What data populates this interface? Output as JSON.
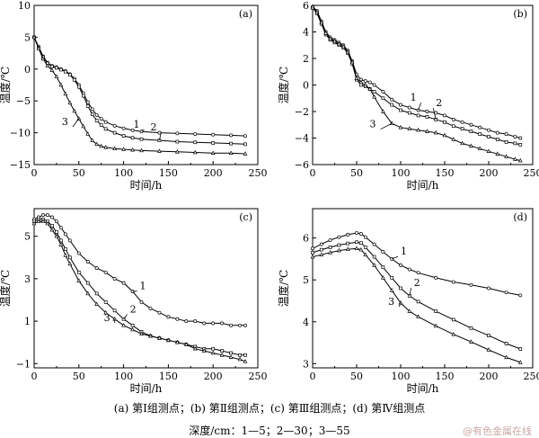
{
  "caption_panels": "(a) 第Ⅰ组测点；(b) 第Ⅱ组测点；(c) 第Ⅲ组测点；(d) 第Ⅳ组测点",
  "caption_depth": "深度/cm：1—5；2—30；3—55",
  "watermark": "@有色金属在线",
  "chart_data": [
    {
      "type": "line",
      "panel_label": "(a)",
      "xlabel": "时间/h",
      "ylabel": "温度/℃",
      "xlim": [
        0,
        250
      ],
      "ylim": [
        -15,
        10
      ],
      "xticks": [
        0,
        50,
        100,
        150,
        200,
        250
      ],
      "yticks": [
        10,
        5,
        0,
        -5,
        -10,
        -15
      ],
      "grid": false,
      "series": [
        {
          "name": "1",
          "x": [
            0,
            5,
            10,
            15,
            20,
            25,
            30,
            35,
            40,
            45,
            50,
            55,
            60,
            65,
            70,
            75,
            80,
            90,
            100,
            110,
            120,
            140,
            160,
            180,
            200,
            220,
            236
          ],
          "y": [
            5.0,
            3.5,
            2.0,
            1.0,
            0.5,
            0.3,
            0.0,
            -0.3,
            -0.8,
            -1.5,
            -2.5,
            -3.8,
            -5.2,
            -6.3,
            -7.2,
            -7.8,
            -8.3,
            -8.9,
            -9.3,
            -9.6,
            -9.8,
            -10.0,
            -10.1,
            -10.2,
            -10.3,
            -10.4,
            -10.5
          ],
          "label_at": [
            118,
            -9.2
          ]
        },
        {
          "name": "2",
          "x": [
            0,
            5,
            10,
            15,
            20,
            25,
            30,
            35,
            40,
            45,
            50,
            55,
            60,
            65,
            70,
            75,
            80,
            90,
            100,
            110,
            120,
            140,
            160,
            180,
            200,
            220,
            236
          ],
          "y": [
            5.0,
            3.4,
            1.9,
            0.9,
            0.4,
            0.2,
            -0.1,
            -0.4,
            -0.9,
            -1.7,
            -2.8,
            -4.2,
            -5.8,
            -7.1,
            -8.1,
            -8.8,
            -9.4,
            -10.0,
            -10.5,
            -10.8,
            -11.0,
            -11.2,
            -11.4,
            -11.5,
            -11.6,
            -11.7,
            -11.8
          ],
          "label_at": [
            137,
            -9.6
          ]
        },
        {
          "name": "3",
          "x": [
            0,
            5,
            10,
            15,
            20,
            25,
            30,
            35,
            40,
            45,
            50,
            55,
            60,
            65,
            70,
            75,
            80,
            90,
            100,
            110,
            120,
            140,
            160,
            180,
            200,
            220,
            236
          ],
          "y": [
            5.0,
            3.2,
            1.6,
            0.5,
            -0.2,
            -1.2,
            -2.5,
            -3.9,
            -5.3,
            -6.6,
            -7.8,
            -9.0,
            -10.2,
            -11.2,
            -11.8,
            -12.1,
            -12.3,
            -12.5,
            -12.6,
            -12.7,
            -12.8,
            -12.9,
            -13.0,
            -13.1,
            -13.2,
            -13.2,
            -13.3
          ],
          "label_at": [
            38,
            -8.8
          ]
        }
      ]
    },
    {
      "type": "line",
      "panel_label": "(b)",
      "xlabel": "时间/h",
      "ylabel": "温度/℃",
      "xlim": [
        0,
        250
      ],
      "ylim": [
        -6,
        6
      ],
      "xticks": [
        0,
        50,
        100,
        150,
        200,
        250
      ],
      "yticks": [
        6,
        4,
        2,
        0,
        -2,
        -4,
        -6
      ],
      "grid": false,
      "series": [
        {
          "name": "1",
          "x": [
            0,
            5,
            10,
            15,
            20,
            25,
            30,
            35,
            40,
            45,
            50,
            55,
            60,
            65,
            70,
            80,
            90,
            100,
            110,
            120,
            130,
            140,
            150,
            160,
            170,
            180,
            190,
            200,
            210,
            220,
            230,
            236
          ],
          "y": [
            5.9,
            5.6,
            4.8,
            4.0,
            3.6,
            3.4,
            3.2,
            3.0,
            2.6,
            1.8,
            0.8,
            0.4,
            0.3,
            0.2,
            0.0,
            -0.5,
            -1.1,
            -1.5,
            -1.7,
            -1.9,
            -2.0,
            -2.1,
            -2.3,
            -2.6,
            -2.8,
            -3.0,
            -3.2,
            -3.4,
            -3.6,
            -3.7,
            -3.9,
            -4.0
          ],
          "label_at": [
            118,
            -1.2
          ]
        },
        {
          "name": "2",
          "x": [
            0,
            5,
            10,
            15,
            20,
            25,
            30,
            35,
            40,
            45,
            50,
            55,
            60,
            65,
            70,
            80,
            90,
            100,
            110,
            120,
            130,
            140,
            150,
            160,
            170,
            180,
            190,
            200,
            210,
            220,
            230,
            236
          ],
          "y": [
            5.8,
            5.4,
            4.6,
            3.8,
            3.4,
            3.2,
            3.0,
            2.8,
            2.4,
            1.6,
            0.4,
            0.0,
            -0.1,
            -0.3,
            -0.5,
            -1.0,
            -1.5,
            -1.9,
            -2.1,
            -2.3,
            -2.4,
            -2.6,
            -2.8,
            -3.1,
            -3.3,
            -3.5,
            -3.7,
            -3.9,
            -4.1,
            -4.3,
            -4.4,
            -4.5
          ],
          "label_at": [
            140,
            -1.6
          ]
        },
        {
          "name": "3",
          "x": [
            0,
            5,
            10,
            15,
            20,
            25,
            30,
            35,
            40,
            45,
            50,
            55,
            60,
            65,
            70,
            80,
            90,
            100,
            110,
            120,
            130,
            140,
            150,
            160,
            170,
            180,
            190,
            200,
            210,
            220,
            230,
            236
          ],
          "y": [
            5.9,
            5.5,
            4.7,
            3.9,
            3.5,
            3.3,
            3.1,
            2.9,
            2.5,
            1.7,
            0.5,
            0.2,
            0.0,
            -0.3,
            -0.9,
            -2.0,
            -2.9,
            -3.2,
            -3.3,
            -3.4,
            -3.5,
            -3.6,
            -3.8,
            -4.1,
            -4.4,
            -4.6,
            -4.8,
            -5.0,
            -5.2,
            -5.4,
            -5.6,
            -5.7
          ],
          "label_at": [
            72,
            -3.2
          ]
        }
      ]
    },
    {
      "type": "line",
      "panel_label": "(c)",
      "xlabel": "时间/h",
      "ylabel": "温度/℃",
      "xlim": [
        0,
        250
      ],
      "ylim": [
        -1.2,
        6.3
      ],
      "xticks": [
        0,
        50,
        100,
        150,
        200,
        250
      ],
      "yticks": [
        5,
        3,
        1,
        -1
      ],
      "grid": false,
      "series": [
        {
          "name": "1",
          "x": [
            0,
            5,
            10,
            15,
            20,
            25,
            30,
            35,
            40,
            50,
            60,
            70,
            80,
            90,
            100,
            110,
            120,
            130,
            140,
            150,
            160,
            170,
            180,
            190,
            200,
            210,
            220,
            230,
            236
          ],
          "y": [
            5.8,
            5.9,
            6.0,
            6.0,
            5.9,
            5.7,
            5.4,
            5.1,
            4.8,
            4.2,
            3.8,
            3.5,
            3.3,
            3.0,
            2.8,
            2.4,
            1.9,
            1.6,
            1.4,
            1.2,
            1.1,
            1.0,
            1.0,
            0.9,
            0.9,
            0.9,
            0.8,
            0.8,
            0.8
          ],
          "label_at": [
            118,
            2.5
          ]
        },
        {
          "name": "2",
          "x": [
            0,
            5,
            10,
            15,
            20,
            25,
            30,
            35,
            40,
            50,
            60,
            70,
            80,
            90,
            100,
            110,
            120,
            130,
            140,
            150,
            160,
            170,
            180,
            190,
            200,
            210,
            220,
            230,
            236
          ],
          "y": [
            5.7,
            5.8,
            5.8,
            5.7,
            5.5,
            5.2,
            4.8,
            4.4,
            4.0,
            3.3,
            2.8,
            2.3,
            1.9,
            1.5,
            1.1,
            0.8,
            0.5,
            0.3,
            0.2,
            0.1,
            0.0,
            -0.1,
            -0.2,
            -0.3,
            -0.3,
            -0.4,
            -0.5,
            -0.6,
            -0.6
          ],
          "label_at": [
            107,
            1.4
          ]
        },
        {
          "name": "3",
          "x": [
            0,
            5,
            10,
            15,
            20,
            25,
            30,
            35,
            40,
            50,
            60,
            70,
            80,
            90,
            100,
            110,
            120,
            130,
            140,
            150,
            160,
            170,
            180,
            190,
            200,
            210,
            220,
            230,
            236
          ],
          "y": [
            5.6,
            5.7,
            5.7,
            5.6,
            5.3,
            5.0,
            4.6,
            4.1,
            3.7,
            2.9,
            2.3,
            1.8,
            1.4,
            1.1,
            0.8,
            0.6,
            0.4,
            0.3,
            0.2,
            0.1,
            0.0,
            -0.1,
            -0.3,
            -0.4,
            -0.5,
            -0.6,
            -0.7,
            -0.8,
            -0.9
          ],
          "label_at": [
            85,
            1.0
          ]
        }
      ]
    },
    {
      "type": "line",
      "panel_label": "(d)",
      "xlabel": "时间/h",
      "ylabel": "温度/℃",
      "xlim": [
        0,
        250
      ],
      "ylim": [
        2.9,
        6.7
      ],
      "xticks": [
        0,
        50,
        100,
        150,
        200,
        250
      ],
      "yticks": [
        6,
        5,
        4,
        3
      ],
      "grid": false,
      "series": [
        {
          "name": "1",
          "x": [
            0,
            10,
            20,
            30,
            40,
            50,
            55,
            60,
            70,
            80,
            90,
            100,
            110,
            120,
            140,
            160,
            180,
            200,
            220,
            236
          ],
          "y": [
            5.75,
            5.85,
            5.95,
            6.02,
            6.08,
            6.12,
            6.1,
            6.02,
            5.85,
            5.67,
            5.5,
            5.35,
            5.25,
            5.17,
            5.05,
            4.95,
            4.88,
            4.8,
            4.7,
            4.63
          ],
          "label_at": [
            100,
            5.6
          ]
        },
        {
          "name": "2",
          "x": [
            0,
            10,
            20,
            30,
            40,
            50,
            55,
            60,
            70,
            80,
            90,
            100,
            110,
            120,
            140,
            160,
            180,
            200,
            220,
            236
          ],
          "y": [
            5.65,
            5.72,
            5.78,
            5.83,
            5.87,
            5.9,
            5.88,
            5.78,
            5.55,
            5.3,
            5.05,
            4.8,
            4.62,
            4.48,
            4.25,
            4.05,
            3.85,
            3.67,
            3.48,
            3.35
          ],
          "label_at": [
            115,
            4.85
          ]
        },
        {
          "name": "3",
          "x": [
            0,
            10,
            20,
            30,
            40,
            50,
            55,
            60,
            70,
            80,
            90,
            100,
            110,
            120,
            140,
            160,
            180,
            200,
            220,
            236
          ],
          "y": [
            5.55,
            5.6,
            5.65,
            5.7,
            5.73,
            5.75,
            5.72,
            5.6,
            5.35,
            5.05,
            4.75,
            4.45,
            4.25,
            4.12,
            3.9,
            3.7,
            3.52,
            3.33,
            3.15,
            3.03
          ],
          "label_at": [
            93,
            4.4
          ]
        }
      ]
    }
  ]
}
